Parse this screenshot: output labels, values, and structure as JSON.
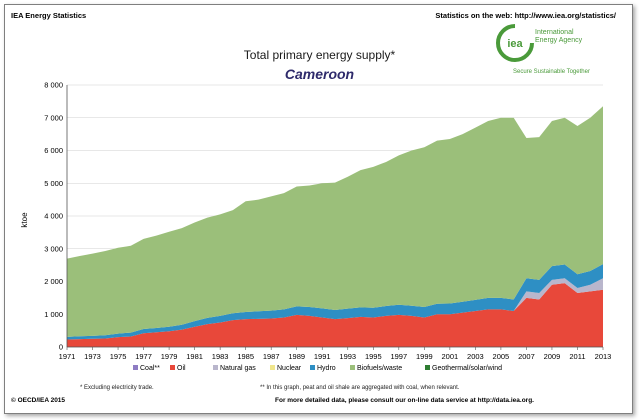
{
  "header": {
    "left": "IEA Energy Statistics",
    "right": "Statistics on the web: http://www.iea.org/statistics/"
  },
  "logo": {
    "mark": "iea",
    "line1": "International",
    "line2": "Energy Agency",
    "tagline": "Secure  Sustainable  Together"
  },
  "colors": {
    "coal": "#8e7cc3",
    "oil": "#e8483a",
    "natural_gas": "#b9b6cc",
    "nuclear": "#f0e68c",
    "hydro": "#2e8fc4",
    "biofuels": "#9bbf7a",
    "geothermal": "#2e7d32",
    "gridline": "#d0d0d0",
    "logo_green": "#4a9a3a"
  },
  "chart_data": {
    "type": "area",
    "stacked": true,
    "title": "Total primary energy supply*",
    "subtitle": "Cameroon",
    "ylabel": "ktoe",
    "xlabel": "",
    "ylim": [
      0,
      8000
    ],
    "yticks": [
      "0",
      "1 000",
      "2 000",
      "3 000",
      "4 000",
      "5 000",
      "6 000",
      "7 000",
      "8 000"
    ],
    "ytick_values": [
      0,
      1000,
      2000,
      3000,
      4000,
      5000,
      6000,
      7000,
      8000
    ],
    "x": [
      1971,
      1972,
      1973,
      1974,
      1975,
      1976,
      1977,
      1978,
      1979,
      1980,
      1981,
      1982,
      1983,
      1984,
      1985,
      1986,
      1987,
      1988,
      1989,
      1990,
      1991,
      1992,
      1993,
      1994,
      1995,
      1996,
      1997,
      1998,
      1999,
      2000,
      2001,
      2002,
      2003,
      2004,
      2005,
      2006,
      2007,
      2008,
      2009,
      2010,
      2011,
      2012,
      2013
    ],
    "xtick_labels": [
      "1971",
      "1973",
      "1975",
      "1977",
      "1979",
      "1981",
      "1983",
      "1985",
      "1987",
      "1989",
      "1991",
      "1993",
      "1995",
      "1997",
      "1999",
      "2001",
      "2003",
      "2005",
      "2007",
      "2009",
      "2011",
      "2013"
    ],
    "series": [
      {
        "name": "Coal**",
        "key": "coal",
        "values": [
          0,
          0,
          0,
          0,
          0,
          0,
          0,
          0,
          0,
          0,
          0,
          0,
          0,
          0,
          0,
          0,
          0,
          0,
          0,
          0,
          0,
          0,
          0,
          0,
          0,
          0,
          0,
          0,
          0,
          0,
          0,
          0,
          0,
          0,
          0,
          0,
          0,
          0,
          0,
          0,
          0,
          0,
          0
        ]
      },
      {
        "name": "Oil",
        "key": "oil",
        "values": [
          230,
          240,
          250,
          260,
          300,
          320,
          420,
          450,
          480,
          530,
          620,
          700,
          750,
          820,
          850,
          860,
          870,
          900,
          980,
          950,
          900,
          850,
          880,
          920,
          900,
          950,
          980,
          950,
          900,
          1000,
          1000,
          1050,
          1100,
          1150,
          1150,
          1100,
          1500,
          1450,
          1900,
          1950,
          1650,
          1700,
          1750
        ]
      },
      {
        "name": "Natural gas",
        "key": "natural_gas",
        "values": [
          0,
          0,
          0,
          0,
          0,
          0,
          0,
          0,
          0,
          0,
          0,
          0,
          0,
          0,
          0,
          0,
          0,
          0,
          0,
          0,
          0,
          0,
          0,
          0,
          0,
          0,
          0,
          0,
          0,
          0,
          0,
          0,
          0,
          0,
          0,
          0,
          200,
          200,
          150,
          150,
          150,
          200,
          350
        ]
      },
      {
        "name": "Nuclear",
        "key": "nuclear",
        "values": [
          0,
          0,
          0,
          0,
          0,
          0,
          0,
          0,
          0,
          0,
          0,
          0,
          0,
          0,
          0,
          0,
          0,
          0,
          0,
          0,
          0,
          0,
          0,
          0,
          0,
          0,
          0,
          0,
          0,
          0,
          0,
          0,
          0,
          0,
          0,
          0,
          0,
          0,
          0,
          0,
          0,
          0,
          0
        ]
      },
      {
        "name": "Hydro",
        "key": "hydro",
        "values": [
          80,
          90,
          90,
          100,
          110,
          120,
          130,
          130,
          140,
          150,
          170,
          190,
          200,
          210,
          220,
          230,
          240,
          250,
          260,
          270,
          280,
          280,
          290,
          290,
          300,
          300,
          310,
          310,
          320,
          320,
          330,
          330,
          340,
          350,
          350,
          350,
          400,
          400,
          420,
          420,
          420,
          420,
          430
        ]
      },
      {
        "name": "Biofuels/waste",
        "key": "biofuels",
        "values": [
          2390,
          2450,
          2510,
          2570,
          2620,
          2650,
          2750,
          2820,
          2900,
          2950,
          3010,
          3060,
          3100,
          3150,
          3380,
          3410,
          3490,
          3550,
          3660,
          3710,
          3820,
          3890,
          4030,
          4190,
          4300,
          4400,
          4560,
          4740,
          4880,
          4980,
          5020,
          5120,
          5260,
          5400,
          5500,
          5550,
          4280,
          4360,
          4430,
          4480,
          4530,
          4680,
          4820
        ]
      },
      {
        "name": "Geothermal/solar/wind",
        "key": "geothermal",
        "values": [
          0,
          0,
          0,
          0,
          0,
          0,
          0,
          0,
          0,
          0,
          0,
          0,
          0,
          0,
          0,
          0,
          0,
          0,
          0,
          0,
          0,
          0,
          0,
          0,
          0,
          0,
          0,
          0,
          0,
          0,
          0,
          0,
          0,
          0,
          0,
          0,
          0,
          0,
          0,
          0,
          0,
          0,
          0
        ]
      }
    ]
  },
  "footnotes": {
    "excluding": "* Excluding electricity trade.",
    "peat": "** In this graph, peat and oil shale are aggregated with coal, when relevant."
  },
  "footer": {
    "copyright": "© OECD/IEA 2015",
    "more": "For more detailed data, please consult our on-line data service at http://data.iea.org."
  }
}
